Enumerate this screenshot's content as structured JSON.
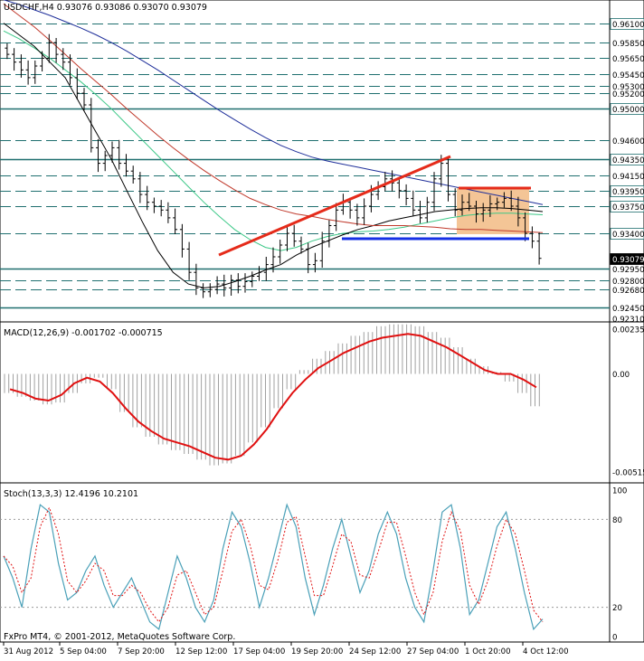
{
  "header": {
    "symbol_line": "USDCHF,H4  0.93076 0.93086 0.93070 0.93079"
  },
  "colors": {
    "ma_green": "#3cc887",
    "ma_black": "#000000",
    "ma_red": "#c0392b",
    "ma_blue": "#1f2f9a",
    "trendline_red": "#e52b1a",
    "support_blue": "#1530e6",
    "flag_fill": "#f4c596",
    "macd_signal": "#e01010",
    "stoch_main": "#4aa0b8",
    "stoch_signal": "#e01010"
  },
  "footer": {
    "copyright": "FxPro MT4, © 2001-2012, MetaQuotes Software Corp."
  },
  "chart_data": [
    {
      "type": "candlestick",
      "title": "USDCHF,H4",
      "ylim": [
        0.9231,
        0.962
      ],
      "price_levels": [
        "0.96100",
        "0.95850",
        "0.95650",
        "0.95450",
        "0.95300",
        "0.95200",
        "0.95000",
        "0.94600",
        "0.94350",
        "0.94150",
        "0.93950",
        "0.93750",
        "0.93400",
        "0.93079",
        "0.92950",
        "0.92800",
        "0.92680",
        "0.92450",
        "0.92310"
      ],
      "current_price": "0.93079",
      "x_tick_labels": [
        "31 Aug 2012",
        "5 Sep 04:00",
        "7 Sep 20:00",
        "12 Sep 12:00",
        "17 Sep 04:00",
        "19 Sep 20:00",
        "24 Sep 12:00",
        "27 Sep 04:00",
        "1 Oct 20:00",
        "4 Oct 12:00"
      ],
      "close_series": [
        0.957,
        0.956,
        0.955,
        0.954,
        0.9555,
        0.9565,
        0.9585,
        0.957,
        0.956,
        0.954,
        0.952,
        0.9505,
        0.945,
        0.943,
        0.944,
        0.945,
        0.943,
        0.942,
        0.941,
        0.939,
        0.938,
        0.9375,
        0.937,
        0.936,
        0.9345,
        0.932,
        0.929,
        0.927,
        0.9265,
        0.9268,
        0.9275,
        0.927,
        0.928,
        0.9272,
        0.9278,
        0.9285,
        0.929,
        0.93,
        0.931,
        0.9325,
        0.934,
        0.933,
        0.932,
        0.93,
        0.9305,
        0.933,
        0.935,
        0.937,
        0.938,
        0.937,
        0.936,
        0.9375,
        0.939,
        0.94,
        0.941,
        0.9405,
        0.9395,
        0.9385,
        0.937,
        0.936,
        0.938,
        0.941,
        0.943,
        0.939,
        0.937,
        0.938,
        0.9375,
        0.9365,
        0.937,
        0.9378,
        0.938,
        0.9385,
        0.9375,
        0.936,
        0.934,
        0.933,
        0.9308
      ],
      "moving_averages": [
        {
          "color_key": "ma_green",
          "values": [
            0.96,
            0.959,
            0.9578,
            0.9565,
            0.955,
            0.9535,
            0.9518,
            0.95,
            0.948,
            0.946,
            0.944,
            0.942,
            0.94,
            0.938,
            0.9362,
            0.9345,
            0.9332,
            0.9322,
            0.9318,
            0.9322,
            0.933,
            0.9336,
            0.934,
            0.9342,
            0.9343,
            0.9345,
            0.9348,
            0.9352,
            0.9356,
            0.936,
            0.9363,
            0.9365,
            0.9366,
            0.9366,
            0.9365,
            0.9364
          ]
        },
        {
          "color_key": "ma_black",
          "values": [
            0.961,
            0.9595,
            0.958,
            0.956,
            0.954,
            0.9505,
            0.947,
            0.9435,
            0.9395,
            0.9355,
            0.9318,
            0.929,
            0.9275,
            0.927,
            0.9272,
            0.9278,
            0.9285,
            0.9293,
            0.93,
            0.9312,
            0.9322,
            0.933,
            0.9338,
            0.9345,
            0.935,
            0.9356,
            0.936,
            0.9364,
            0.9368,
            0.937,
            0.9372,
            0.9373,
            0.9373,
            0.9372,
            0.937,
            0.9368
          ]
        },
        {
          "color_key": "ma_red",
          "values": [
            0.9635,
            0.962,
            0.9605,
            0.9588,
            0.957,
            0.9552,
            0.9535,
            0.9518,
            0.95,
            0.9483,
            0.9466,
            0.945,
            0.9435,
            0.9421,
            0.9408,
            0.9396,
            0.9385,
            0.9377,
            0.937,
            0.9365,
            0.9362,
            0.9358,
            0.9355,
            0.9352,
            0.935,
            0.935,
            0.935,
            0.9349,
            0.9348,
            0.9346,
            0.9345,
            0.9345,
            0.9344,
            0.9343,
            0.9342,
            0.9341
          ]
        },
        {
          "color_key": "ma_blue",
          "values": [
            0.964,
            0.9634,
            0.9627,
            0.962,
            0.9612,
            0.9604,
            0.9595,
            0.9585,
            0.9574,
            0.9562,
            0.955,
            0.9537,
            0.9524,
            0.9511,
            0.9498,
            0.9486,
            0.9474,
            0.9463,
            0.9453,
            0.9445,
            0.9438,
            0.9433,
            0.9429,
            0.9425,
            0.9421,
            0.9417,
            0.9413,
            0.9409,
            0.9405,
            0.9401,
            0.9397,
            0.9393,
            0.9389,
            0.9385,
            0.9381,
            0.9377
          ]
        }
      ]
    },
    {
      "type": "bar",
      "title": "MACD(12,26,9) -0.001702 -0.000715",
      "ylim": [
        -0.00515,
        0.00235
      ],
      "y_tick_labels": [
        "0.00235",
        "0.00",
        "-0.00515"
      ],
      "histogram": [
        -0.001,
        -0.0012,
        -0.0014,
        -0.0016,
        -0.0015,
        -0.001,
        -0.0005,
        -0.0002,
        -0.0008,
        -0.002,
        -0.0028,
        -0.0033,
        -0.0037,
        -0.004,
        -0.0042,
        -0.0045,
        -0.0048,
        -0.0047,
        -0.0043,
        -0.0036,
        -0.0028,
        -0.0018,
        -0.0008,
        0.0002,
        0.0008,
        0.0012,
        0.0016,
        0.002,
        0.0022,
        0.0025,
        0.0026,
        0.0026,
        0.0025,
        0.0022,
        0.0019,
        0.0014,
        0.0008,
        0.0004,
        0.0001,
        -0.0004,
        -0.001,
        -0.0017
      ],
      "signal": [
        -0.0008,
        -0.001,
        -0.0013,
        -0.0014,
        -0.0011,
        -0.0005,
        -0.0002,
        -0.0004,
        -0.001,
        -0.0018,
        -0.0025,
        -0.003,
        -0.0034,
        -0.0036,
        -0.0038,
        -0.0041,
        -0.0044,
        -0.0045,
        -0.0043,
        -0.0037,
        -0.0029,
        -0.0019,
        -0.001,
        -0.0003,
        0.0003,
        0.0007,
        0.0011,
        0.0014,
        0.0017,
        0.0019,
        0.002,
        0.0021,
        0.002,
        0.0017,
        0.0014,
        0.001,
        0.0006,
        0.0002,
        0.0,
        0.0,
        -0.0003,
        -0.0007
      ]
    },
    {
      "type": "line",
      "title": "Stoch(13,3,3) 12.4196 10.2101",
      "ylim": [
        0,
        100
      ],
      "y_tick_labels": [
        "100",
        "80",
        "20",
        "0"
      ],
      "main": [
        55,
        40,
        20,
        60,
        90,
        85,
        50,
        25,
        30,
        45,
        55,
        35,
        20,
        30,
        40,
        25,
        10,
        5,
        30,
        55,
        40,
        20,
        10,
        25,
        60,
        85,
        75,
        50,
        20,
        40,
        65,
        90,
        75,
        40,
        15,
        35,
        60,
        80,
        55,
        30,
        45,
        70,
        85,
        70,
        40,
        20,
        10,
        45,
        85,
        90,
        60,
        15,
        25,
        50,
        75,
        85,
        60,
        30,
        5,
        12
      ],
      "signal": [
        55,
        48,
        30,
        40,
        75,
        88,
        70,
        38,
        30,
        38,
        50,
        45,
        28,
        28,
        35,
        30,
        18,
        10,
        20,
        42,
        45,
        30,
        15,
        20,
        45,
        72,
        80,
        62,
        35,
        32,
        52,
        78,
        82,
        55,
        28,
        28,
        48,
        70,
        65,
        42,
        40,
        58,
        78,
        78,
        55,
        30,
        15,
        30,
        65,
        85,
        72,
        35,
        22,
        38,
        62,
        80,
        70,
        45,
        18,
        10
      ]
    }
  ]
}
